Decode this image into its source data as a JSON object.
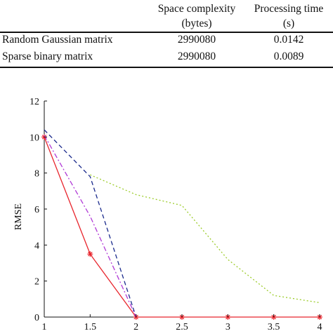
{
  "table": {
    "header": {
      "col2_line1": "Space complexity",
      "col2_line2": "(bytes)",
      "col3_line1": "Processing time",
      "col3_line2": "(s)"
    },
    "rows": [
      {
        "label": "Random Gaussian matrix",
        "space": "2990080",
        "time": "0.0142"
      },
      {
        "label": "Sparse binary matrix",
        "space": "2990080",
        "time": "0.0089"
      }
    ]
  },
  "chart_data": {
    "type": "line",
    "title": "",
    "xlabel": "",
    "ylabel": "RMSE",
    "xlim": [
      1,
      4
    ],
    "ylim": [
      0,
      12
    ],
    "x_ticks": [
      "1",
      "1.5",
      "2",
      "2.5",
      "3",
      "3.5",
      "4"
    ],
    "y_ticks": [
      "0",
      "2",
      "4",
      "6",
      "8",
      "10",
      "12"
    ],
    "grid": false,
    "series": [
      {
        "style": "solid",
        "color": "#e8242c",
        "marker": "asterisk",
        "x": [
          1,
          1.5,
          2,
          2.5,
          3,
          3.5,
          4
        ],
        "y": [
          10.0,
          3.5,
          0.0,
          0.0,
          0.0,
          0.0,
          0.0
        ]
      },
      {
        "style": "dashed",
        "color": "#1a2a8c",
        "marker": "none",
        "x": [
          1,
          1.5,
          2
        ],
        "y": [
          10.4,
          7.8,
          0.0
        ]
      },
      {
        "style": "dashdot",
        "color": "#b03ad6",
        "marker": "none",
        "x": [
          1,
          1.5,
          2
        ],
        "y": [
          10.1,
          5.6,
          0.0
        ]
      },
      {
        "style": "dotted",
        "color": "#9ccc2b",
        "marker": "none",
        "x": [
          1.5,
          2,
          2.5,
          3,
          3.5,
          4
        ],
        "y": [
          7.9,
          6.8,
          6.2,
          3.2,
          1.2,
          0.8
        ]
      }
    ]
  }
}
